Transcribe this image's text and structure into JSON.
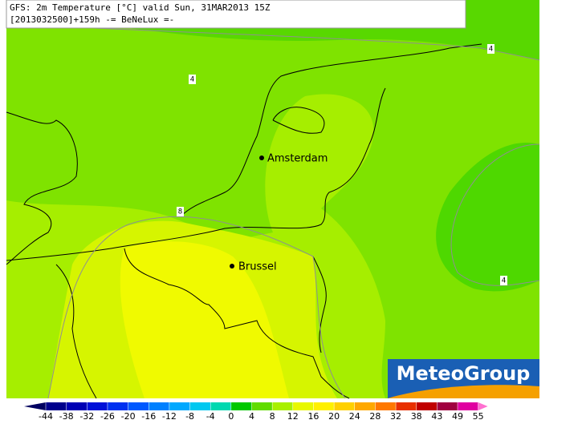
{
  "header": {
    "line1": "GFS: 2m Temperature [°C] valid Sun, 31MAR2013 15Z",
    "line2": "[2013032500]+159h  -= BeNeLux =-"
  },
  "contour_labels": [
    "4",
    "4",
    "8",
    "4"
  ],
  "cities": [
    "Amsterdam",
    "Brussel"
  ],
  "logo": "MeteoGroup",
  "legend": {
    "ticks": [
      -44,
      -38,
      -32,
      -26,
      -20,
      -16,
      -12,
      -8,
      -4,
      0,
      4,
      8,
      12,
      16,
      20,
      24,
      28,
      32,
      38,
      43,
      49,
      55
    ],
    "colors": [
      "#000060",
      "#00008c",
      "#0000b4",
      "#0010d8",
      "#0030f0",
      "#0058ff",
      "#0080ff",
      "#00a8ff",
      "#00c8f0",
      "#00d8b0",
      "#00c800",
      "#60dc00",
      "#a8f000",
      "#e8f800",
      "#fff000",
      "#ffd000",
      "#ffa800",
      "#ff7800",
      "#e83000",
      "#c00000",
      "#a00040",
      "#e000a0",
      "#ff70d0"
    ]
  }
}
